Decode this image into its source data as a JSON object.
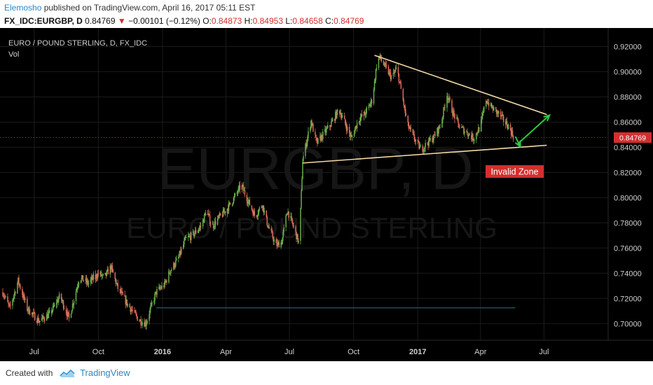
{
  "publish": {
    "author": "Elemosho",
    "text": " published on TradingView.com, April 16, 2017 05:11 EST"
  },
  "quote": {
    "symbol": "FX_IDC:EURGBP, D",
    "last": "0.84769",
    "change": "−0.00101 (−0.12%)",
    "o_label": "O:",
    "o": "0.84873",
    "h_label": "H:",
    "h": "0.84953",
    "l_label": "L:",
    "l": "0.84658",
    "c_label": "C:",
    "c": "0.84769",
    "down_color": "#d32f2f"
  },
  "footer": {
    "created_with": "Created with",
    "brand": "TradingView"
  },
  "chart_data": {
    "type": "candlestick",
    "title": "EURO / POUND STERLING, D, FX_IDC",
    "indicator_label": "Vol",
    "watermark_symbol": "EURGBP, D",
    "watermark_name": "EURO / POUND STERLING",
    "price_label": "0.84769",
    "price_label_color": "#d32f2f",
    "up_color": "#6ab04c",
    "down_color": "#e0695a",
    "trendline_color": "#f3d9a4",
    "arrow_color": "#2ecc40",
    "annotation": {
      "text": "Invalid Zone",
      "bg": "#d32f2f"
    },
    "x_ticks": [
      {
        "label": "Jul",
        "day": 45
      },
      {
        "label": "Oct",
        "day": 137
      },
      {
        "label": "2016",
        "day": 229
      },
      {
        "label": "Apr",
        "day": 320
      },
      {
        "label": "Jul",
        "day": 411
      },
      {
        "label": "Oct",
        "day": 503
      },
      {
        "label": "2017",
        "day": 595
      },
      {
        "label": "Apr",
        "day": 685
      },
      {
        "label": "Jul",
        "day": 776
      }
    ],
    "y_ticks": [
      {
        "label": "0.70000",
        "value": 0.7
      },
      {
        "label": "0.72000",
        "value": 0.72
      },
      {
        "label": "0.74000",
        "value": 0.74
      },
      {
        "label": "0.76000",
        "value": 0.76
      },
      {
        "label": "0.78000",
        "value": 0.78
      },
      {
        "label": "0.80000",
        "value": 0.8
      },
      {
        "label": "0.82000",
        "value": 0.82
      },
      {
        "label": "0.84000",
        "value": 0.84
      },
      {
        "label": "0.86000",
        "value": 0.86
      },
      {
        "label": "0.88000",
        "value": 0.88
      },
      {
        "label": "0.90000",
        "value": 0.9
      },
      {
        "label": "0.92000",
        "value": 0.92
      }
    ],
    "ylim": [
      0.6868,
      0.9347
    ],
    "xlim": [
      0,
      860
    ],
    "last_price": 0.84769,
    "price_path": [
      [
        0,
        0.725
      ],
      [
        10,
        0.712
      ],
      [
        22,
        0.734
      ],
      [
        35,
        0.712
      ],
      [
        52,
        0.702
      ],
      [
        68,
        0.708
      ],
      [
        82,
        0.722
      ],
      [
        95,
        0.704
      ],
      [
        110,
        0.737
      ],
      [
        122,
        0.732
      ],
      [
        138,
        0.74
      ],
      [
        145,
        0.736
      ],
      [
        155,
        0.745
      ],
      [
        165,
        0.728
      ],
      [
        178,
        0.716
      ],
      [
        195,
        0.703
      ],
      [
        205,
        0.7
      ],
      [
        212,
        0.712
      ],
      [
        220,
        0.725
      ],
      [
        232,
        0.731
      ],
      [
        240,
        0.742
      ],
      [
        252,
        0.752
      ],
      [
        262,
        0.767
      ],
      [
        272,
        0.77
      ],
      [
        285,
        0.778
      ],
      [
        292,
        0.79
      ],
      [
        300,
        0.777
      ],
      [
        310,
        0.784
      ],
      [
        320,
        0.79
      ],
      [
        330,
        0.798
      ],
      [
        342,
        0.81
      ],
      [
        352,
        0.797
      ],
      [
        362,
        0.785
      ],
      [
        372,
        0.795
      ],
      [
        380,
        0.778
      ],
      [
        392,
        0.762
      ],
      [
        400,
        0.765
      ],
      [
        408,
        0.79
      ],
      [
        418,
        0.775
      ],
      [
        425,
        0.763
      ],
      [
        430,
        0.83
      ],
      [
        435,
        0.843
      ],
      [
        442,
        0.861
      ],
      [
        450,
        0.843
      ],
      [
        462,
        0.852
      ],
      [
        470,
        0.858
      ],
      [
        482,
        0.87
      ],
      [
        490,
        0.86
      ],
      [
        500,
        0.847
      ],
      [
        510,
        0.862
      ],
      [
        520,
        0.867
      ],
      [
        530,
        0.878
      ],
      [
        536,
        0.905
      ],
      [
        540,
        0.912
      ],
      [
        550,
        0.902
      ],
      [
        558,
        0.895
      ],
      [
        565,
        0.903
      ],
      [
        573,
        0.88
      ],
      [
        580,
        0.858
      ],
      [
        590,
        0.847
      ],
      [
        600,
        0.838
      ],
      [
        608,
        0.843
      ],
      [
        618,
        0.848
      ],
      [
        628,
        0.858
      ],
      [
        637,
        0.882
      ],
      [
        645,
        0.868
      ],
      [
        655,
        0.856
      ],
      [
        665,
        0.852
      ],
      [
        675,
        0.847
      ],
      [
        685,
        0.857
      ],
      [
        693,
        0.878
      ],
      [
        700,
        0.872
      ],
      [
        712,
        0.866
      ],
      [
        720,
        0.86
      ],
      [
        726,
        0.856
      ],
      [
        733,
        0.8477
      ]
    ],
    "trendlines": [
      {
        "from": [
          533,
          0.913
        ],
        "to": [
          780,
          0.866
        ]
      },
      {
        "from": [
          430,
          0.8275
        ],
        "to": [
          780,
          0.8416
        ]
      }
    ],
    "arrows": [
      {
        "from": [
          735,
          0.8485
        ],
        "to": [
          742,
          0.8405
        ]
      },
      {
        "from": [
          738,
          0.8425
        ],
        "to": [
          784,
          0.8655
        ]
      }
    ],
    "ray": {
      "from": 220,
      "to": 735,
      "value": 0.7125
    }
  }
}
